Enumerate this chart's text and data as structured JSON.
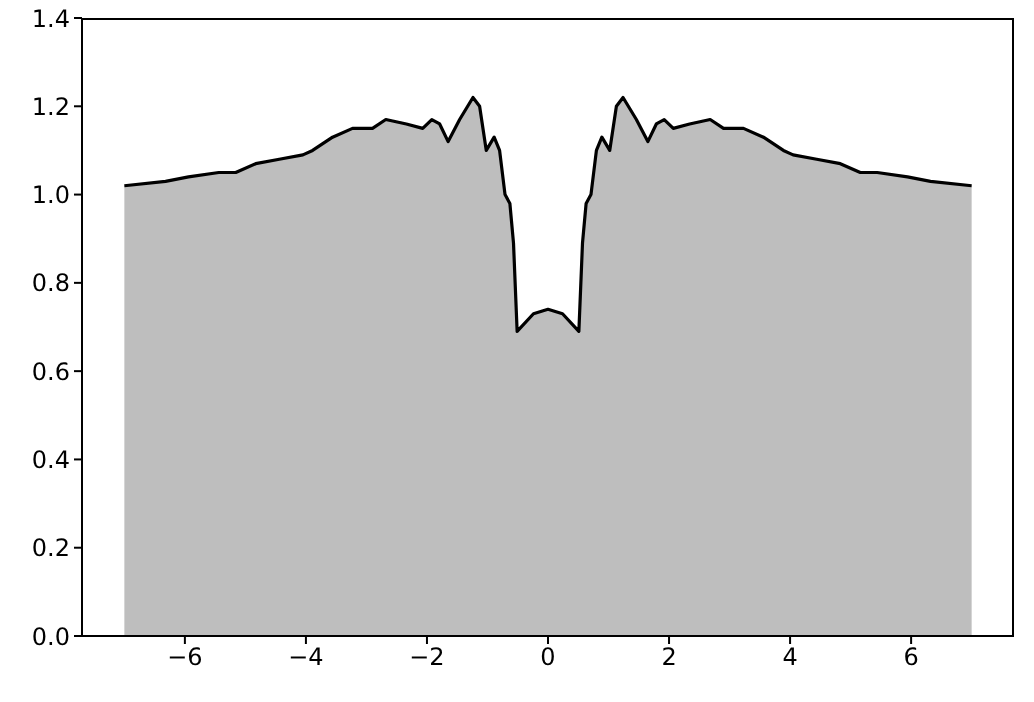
{
  "chart_data": {
    "type": "area",
    "x": [
      -7.0,
      -6.32,
      -5.94,
      -5.44,
      -5.16,
      -4.83,
      -4.44,
      -4.05,
      -3.89,
      -3.56,
      -3.23,
      -2.9,
      -2.68,
      -2.34,
      -2.07,
      -1.92,
      -1.79,
      -1.65,
      -1.46,
      -1.24,
      -1.13,
      -1.02,
      -0.89,
      -0.8,
      -0.71,
      -0.63,
      -0.57,
      -0.51,
      -0.24,
      0,
      0.24,
      0.51,
      0.57,
      0.63,
      0.71,
      0.8,
      0.89,
      1.02,
      1.13,
      1.24,
      1.46,
      1.65,
      1.79,
      1.92,
      2.07,
      2.34,
      2.68,
      2.9,
      3.23,
      3.56,
      3.89,
      4.05,
      4.44,
      4.83,
      5.16,
      5.44,
      5.94,
      6.32,
      7.0
    ],
    "series": [
      {
        "color": "#bebebe",
        "values": [
          1.02,
          1.03,
          1.04,
          1.05,
          1.05,
          1.07,
          1.08,
          1.09,
          1.1,
          1.13,
          1.15,
          1.15,
          1.17,
          1.16,
          1.15,
          1.17,
          1.16,
          1.12,
          1.17,
          1.22,
          1.2,
          1.1,
          1.13,
          1.1,
          1.0,
          0.98,
          0.89,
          0.69,
          0.73,
          0.74,
          0.73,
          0.69,
          0.89,
          0.98,
          1.0,
          1.1,
          1.13,
          1.1,
          1.2,
          1.22,
          1.17,
          1.12,
          1.16,
          1.17,
          1.15,
          1.16,
          1.17,
          1.15,
          1.15,
          1.13,
          1.1,
          1.09,
          1.08,
          1.07,
          1.05,
          1.05,
          1.04,
          1.03,
          1.02
        ]
      }
    ],
    "xlim": [
      -7.7,
      7.7
    ],
    "xticks": [
      {
        "value": -6,
        "label": "−6"
      },
      {
        "value": -4,
        "label": "−4"
      },
      {
        "value": -2,
        "label": "−2"
      },
      0,
      2,
      4,
      6
    ],
    "ylim": [
      0,
      1.4
    ],
    "yticks": [
      {
        "value": 0,
        "label": "0.0"
      },
      0.2,
      0.4,
      0.6,
      0.8,
      {
        "value": 1,
        "label": "1.0"
      },
      1.2,
      1.4
    ]
  }
}
